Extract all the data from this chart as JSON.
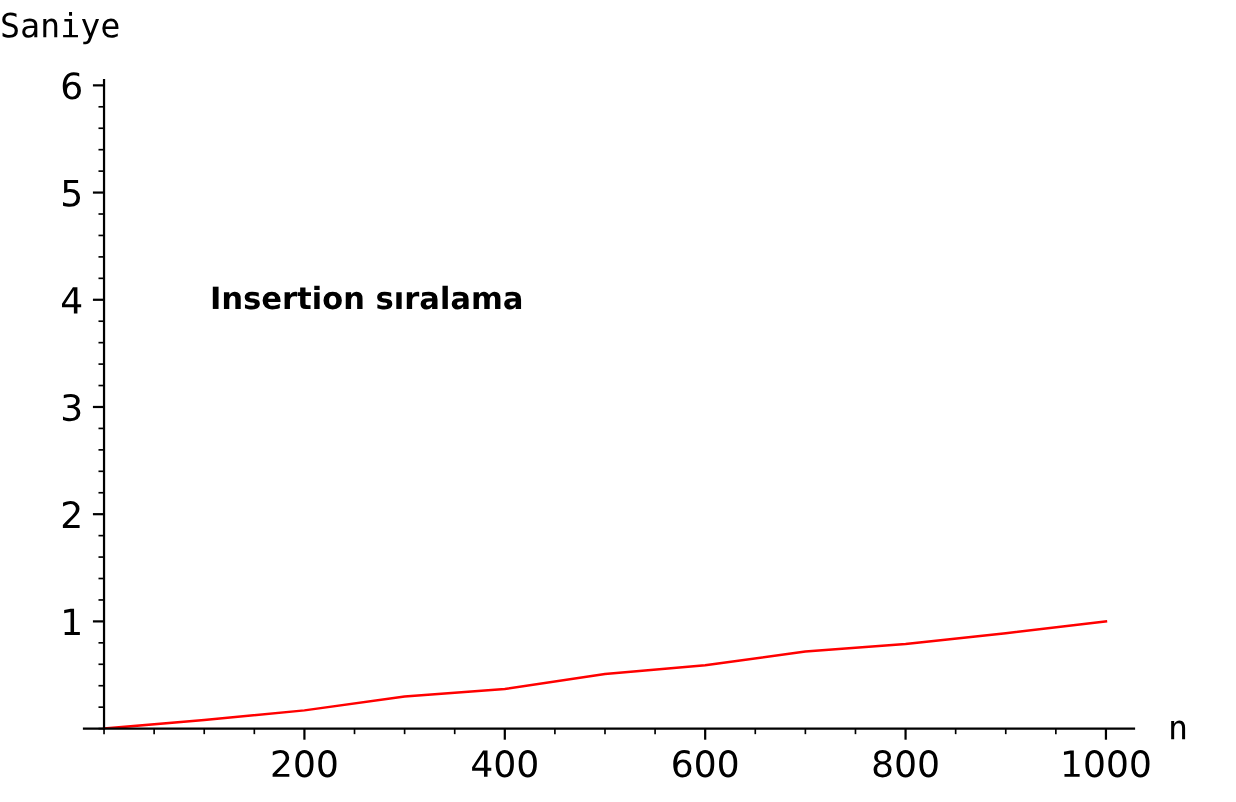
{
  "chart_data": {
    "type": "line",
    "xlabel": "n",
    "ylabel": "Saniye",
    "annotations": [
      "Insertion sıralama"
    ],
    "x": [
      0,
      100,
      200,
      300,
      400,
      500,
      600,
      700,
      800,
      900,
      1000
    ],
    "series": [
      {
        "color": "#ff0000",
        "values": [
          0,
          0.08,
          0.17,
          0.3,
          0.37,
          0.51,
          0.59,
          0.72,
          0.79,
          0.89,
          1.0
        ]
      }
    ],
    "xlim": [
      -20,
      1028
    ],
    "ylim": [
      0,
      6.05
    ],
    "xticks": [
      200,
      400,
      600,
      800,
      1000
    ],
    "yticks": [
      1,
      2,
      3,
      4,
      5,
      6
    ],
    "grid": false,
    "legend": false,
    "marker": "none",
    "line_style": "solid"
  }
}
